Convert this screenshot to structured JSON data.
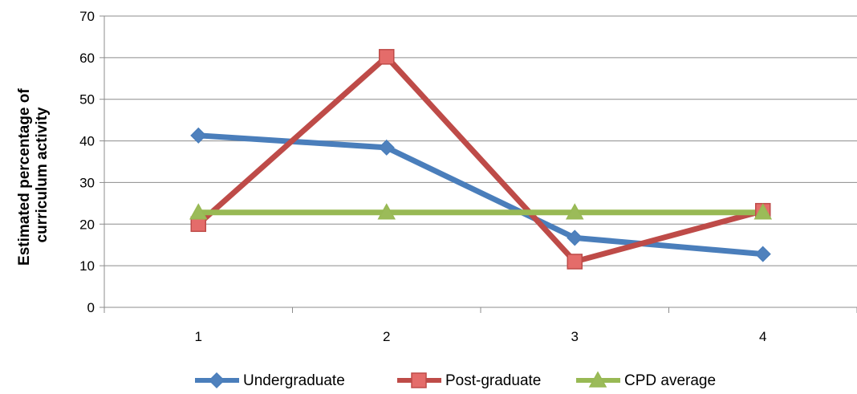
{
  "chart_data": {
    "type": "line",
    "title": "",
    "xlabel": "",
    "ylabel_lines": [
      "Estimated percentage of",
      "curriculum activity"
    ],
    "categories": [
      "1",
      "2",
      "3",
      "4"
    ],
    "ylim": [
      0,
      70
    ],
    "yticks": [
      0,
      10,
      20,
      30,
      40,
      50,
      60,
      70
    ],
    "grid": true,
    "legend_position": "bottom",
    "series": [
      {
        "name": "Undergraduate",
        "values": [
          41.3,
          38.4,
          16.7,
          12.8
        ],
        "color": "#4a7ebb",
        "marker": "diamond",
        "marker_fill": "#4f81bd"
      },
      {
        "name": "Post-graduate",
        "values": [
          20.0,
          60.2,
          11.0,
          23.2
        ],
        "color": "#be4b48",
        "marker": "square",
        "marker_fill": "#e46c6a"
      },
      {
        "name": "CPD average",
        "values": [
          22.8,
          22.8,
          22.8,
          22.8
        ],
        "color": "#98b954",
        "marker": "triangle",
        "marker_fill": "#9bbb59"
      }
    ]
  }
}
